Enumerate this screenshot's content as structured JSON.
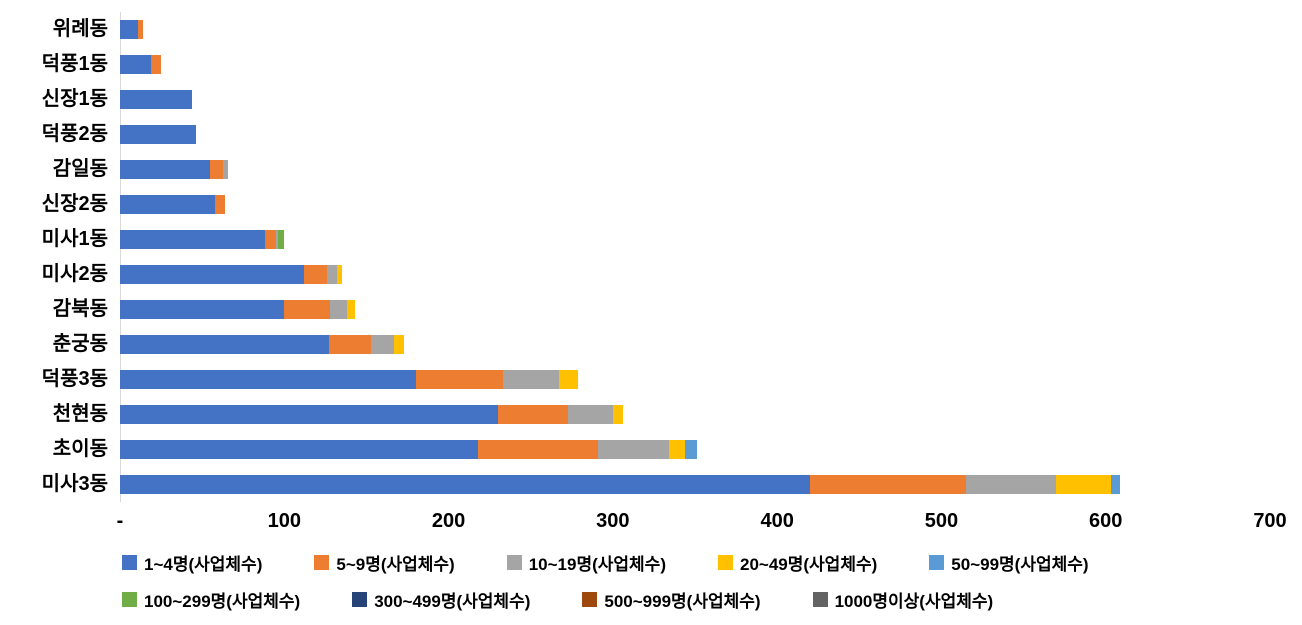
{
  "chart_data": {
    "type": "bar",
    "orientation": "horizontal",
    "stacked": true,
    "title": "",
    "xlabel": "",
    "ylabel": "",
    "xlim": [
      0,
      700
    ],
    "xticks": [
      "-",
      "100",
      "200",
      "300",
      "400",
      "500",
      "600",
      "700"
    ],
    "xtick_values": [
      0,
      100,
      200,
      300,
      400,
      500,
      600,
      700
    ],
    "grid": false,
    "legend_position": "bottom",
    "legend_rows": [
      5,
      4
    ],
    "categories": [
      "위례동",
      "덕풍1동",
      "신장1동",
      "덕풍2동",
      "감일동",
      "신장2동",
      "미사1동",
      "미사2동",
      "감북동",
      "춘궁동",
      "덕풍3동",
      "천현동",
      "초이동",
      "미사3동"
    ],
    "series": [
      {
        "name": "1~4명(사업체수)",
        "color": "#4472C4",
        "values": [
          11,
          19,
          44,
          46,
          55,
          58,
          88,
          112,
          100,
          127,
          180,
          230,
          218,
          420
        ]
      },
      {
        "name": "5~9명(사업체수)",
        "color": "#ED7D31",
        "values": [
          3,
          6,
          0,
          0,
          8,
          6,
          7,
          14,
          28,
          26,
          53,
          43,
          73,
          95
        ]
      },
      {
        "name": "10~19명(사업체수)",
        "color": "#A5A5A5",
        "values": [
          0,
          0,
          0,
          0,
          3,
          0,
          1,
          6,
          10,
          14,
          34,
          27,
          43,
          55
        ]
      },
      {
        "name": "20~49명(사업체수)",
        "color": "#FFC000",
        "values": [
          0,
          0,
          0,
          0,
          0,
          0,
          0,
          3,
          5,
          6,
          12,
          6,
          10,
          33
        ]
      },
      {
        "name": "50~99명(사업체수)",
        "color": "#5B9BD5",
        "values": [
          0,
          0,
          0,
          0,
          0,
          0,
          0,
          0,
          0,
          0,
          0,
          0,
          7,
          6
        ]
      },
      {
        "name": "100~299명(사업체수)",
        "color": "#70AD47",
        "values": [
          0,
          0,
          0,
          0,
          0,
          0,
          4,
          0,
          0,
          0,
          0,
          0,
          0,
          0
        ]
      },
      {
        "name": "300~499명(사업체수)",
        "color": "#264478",
        "values": [
          0,
          0,
          0,
          0,
          0,
          0,
          0,
          0,
          0,
          0,
          0,
          0,
          0,
          0
        ]
      },
      {
        "name": "500~999명(사업체수)",
        "color": "#9E480E",
        "values": [
          0,
          0,
          0,
          0,
          0,
          0,
          0,
          0,
          0,
          0,
          0,
          0,
          0,
          0
        ]
      },
      {
        "name": "1000명이상(사업체수)",
        "color": "#636363",
        "values": [
          0,
          0,
          0,
          0,
          0,
          0,
          0,
          0,
          0,
          0,
          0,
          0,
          0,
          0
        ]
      }
    ]
  }
}
